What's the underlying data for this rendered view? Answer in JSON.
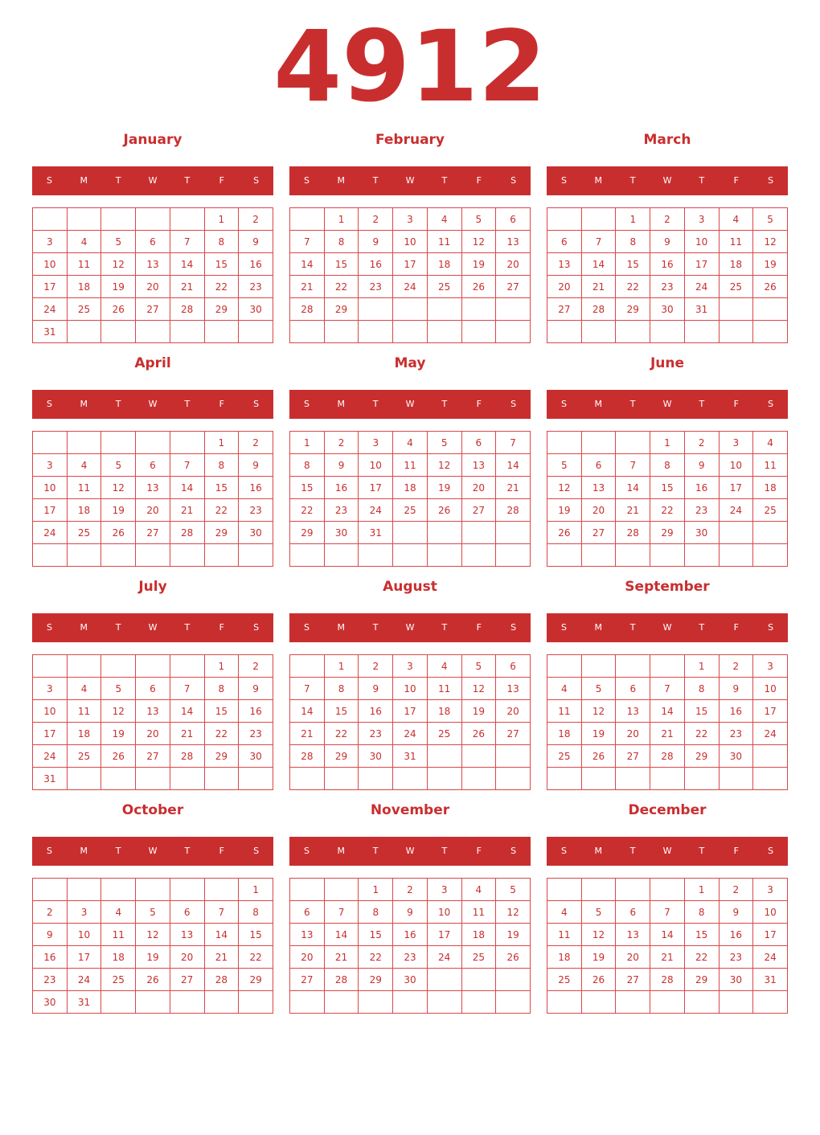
{
  "year": "4912",
  "accent": "#c92e2f",
  "weekdays": [
    "S",
    "M",
    "T",
    "W",
    "T",
    "F",
    "S"
  ],
  "months": [
    {
      "name": "January",
      "weeks": [
        [
          null,
          null,
          null,
          null,
          null,
          1,
          2
        ],
        [
          3,
          4,
          5,
          6,
          7,
          8,
          9
        ],
        [
          10,
          11,
          12,
          13,
          14,
          15,
          16
        ],
        [
          17,
          18,
          19,
          20,
          21,
          22,
          23
        ],
        [
          24,
          25,
          26,
          27,
          28,
          29,
          30
        ],
        [
          31,
          null,
          null,
          null,
          null,
          null,
          null
        ]
      ]
    },
    {
      "name": "February",
      "weeks": [
        [
          null,
          1,
          2,
          3,
          4,
          5,
          6
        ],
        [
          7,
          8,
          9,
          10,
          11,
          12,
          13
        ],
        [
          14,
          15,
          16,
          17,
          18,
          19,
          20
        ],
        [
          21,
          22,
          23,
          24,
          25,
          26,
          27
        ],
        [
          28,
          29,
          null,
          null,
          null,
          null,
          null
        ],
        [
          null,
          null,
          null,
          null,
          null,
          null,
          null
        ]
      ]
    },
    {
      "name": "March",
      "weeks": [
        [
          null,
          null,
          1,
          2,
          3,
          4,
          5
        ],
        [
          6,
          7,
          8,
          9,
          10,
          11,
          12
        ],
        [
          13,
          14,
          15,
          16,
          17,
          18,
          19
        ],
        [
          20,
          21,
          22,
          23,
          24,
          25,
          26
        ],
        [
          27,
          28,
          29,
          30,
          31,
          null,
          null
        ],
        [
          null,
          null,
          null,
          null,
          null,
          null,
          null
        ]
      ]
    },
    {
      "name": "April",
      "weeks": [
        [
          null,
          null,
          null,
          null,
          null,
          1,
          2
        ],
        [
          3,
          4,
          5,
          6,
          7,
          8,
          9
        ],
        [
          10,
          11,
          12,
          13,
          14,
          15,
          16
        ],
        [
          17,
          18,
          19,
          20,
          21,
          22,
          23
        ],
        [
          24,
          25,
          26,
          27,
          28,
          29,
          30
        ],
        [
          null,
          null,
          null,
          null,
          null,
          null,
          null
        ]
      ]
    },
    {
      "name": "May",
      "weeks": [
        [
          1,
          2,
          3,
          4,
          5,
          6,
          7
        ],
        [
          8,
          9,
          10,
          11,
          12,
          13,
          14
        ],
        [
          15,
          16,
          17,
          18,
          19,
          20,
          21
        ],
        [
          22,
          23,
          24,
          25,
          26,
          27,
          28
        ],
        [
          29,
          30,
          31,
          null,
          null,
          null,
          null
        ],
        [
          null,
          null,
          null,
          null,
          null,
          null,
          null
        ]
      ]
    },
    {
      "name": "June",
      "weeks": [
        [
          null,
          null,
          null,
          1,
          2,
          3,
          4
        ],
        [
          5,
          6,
          7,
          8,
          9,
          10,
          11
        ],
        [
          12,
          13,
          14,
          15,
          16,
          17,
          18
        ],
        [
          19,
          20,
          21,
          22,
          23,
          24,
          25
        ],
        [
          26,
          27,
          28,
          29,
          30,
          null,
          null
        ],
        [
          null,
          null,
          null,
          null,
          null,
          null,
          null
        ]
      ]
    },
    {
      "name": "July",
      "weeks": [
        [
          null,
          null,
          null,
          null,
          null,
          1,
          2
        ],
        [
          3,
          4,
          5,
          6,
          7,
          8,
          9
        ],
        [
          10,
          11,
          12,
          13,
          14,
          15,
          16
        ],
        [
          17,
          18,
          19,
          20,
          21,
          22,
          23
        ],
        [
          24,
          25,
          26,
          27,
          28,
          29,
          30
        ],
        [
          31,
          null,
          null,
          null,
          null,
          null,
          null
        ]
      ]
    },
    {
      "name": "August",
      "weeks": [
        [
          null,
          1,
          2,
          3,
          4,
          5,
          6
        ],
        [
          7,
          8,
          9,
          10,
          11,
          12,
          13
        ],
        [
          14,
          15,
          16,
          17,
          18,
          19,
          20
        ],
        [
          21,
          22,
          23,
          24,
          25,
          26,
          27
        ],
        [
          28,
          29,
          30,
          31,
          null,
          null,
          null
        ],
        [
          null,
          null,
          null,
          null,
          null,
          null,
          null
        ]
      ]
    },
    {
      "name": "September",
      "weeks": [
        [
          null,
          null,
          null,
          null,
          1,
          2,
          3
        ],
        [
          4,
          5,
          6,
          7,
          8,
          9,
          10
        ],
        [
          11,
          12,
          13,
          14,
          15,
          16,
          17
        ],
        [
          18,
          19,
          20,
          21,
          22,
          23,
          24
        ],
        [
          25,
          26,
          27,
          28,
          29,
          30,
          null
        ],
        [
          null,
          null,
          null,
          null,
          null,
          null,
          null
        ]
      ]
    },
    {
      "name": "October",
      "weeks": [
        [
          null,
          null,
          null,
          null,
          null,
          null,
          1
        ],
        [
          2,
          3,
          4,
          5,
          6,
          7,
          8
        ],
        [
          9,
          10,
          11,
          12,
          13,
          14,
          15
        ],
        [
          16,
          17,
          18,
          19,
          20,
          21,
          22
        ],
        [
          23,
          24,
          25,
          26,
          27,
          28,
          29
        ],
        [
          30,
          31,
          null,
          null,
          null,
          null,
          null
        ]
      ]
    },
    {
      "name": "November",
      "weeks": [
        [
          null,
          null,
          1,
          2,
          3,
          4,
          5
        ],
        [
          6,
          7,
          8,
          9,
          10,
          11,
          12
        ],
        [
          13,
          14,
          15,
          16,
          17,
          18,
          19
        ],
        [
          20,
          21,
          22,
          23,
          24,
          25,
          26
        ],
        [
          27,
          28,
          29,
          30,
          null,
          null,
          null
        ],
        [
          null,
          null,
          null,
          null,
          null,
          null,
          null
        ]
      ]
    },
    {
      "name": "December",
      "weeks": [
        [
          null,
          null,
          null,
          null,
          1,
          2,
          3
        ],
        [
          4,
          5,
          6,
          7,
          8,
          9,
          10
        ],
        [
          11,
          12,
          13,
          14,
          15,
          16,
          17
        ],
        [
          18,
          19,
          20,
          21,
          22,
          23,
          24
        ],
        [
          25,
          26,
          27,
          28,
          29,
          30,
          31
        ],
        [
          null,
          null,
          null,
          null,
          null,
          null,
          null
        ]
      ]
    }
  ]
}
